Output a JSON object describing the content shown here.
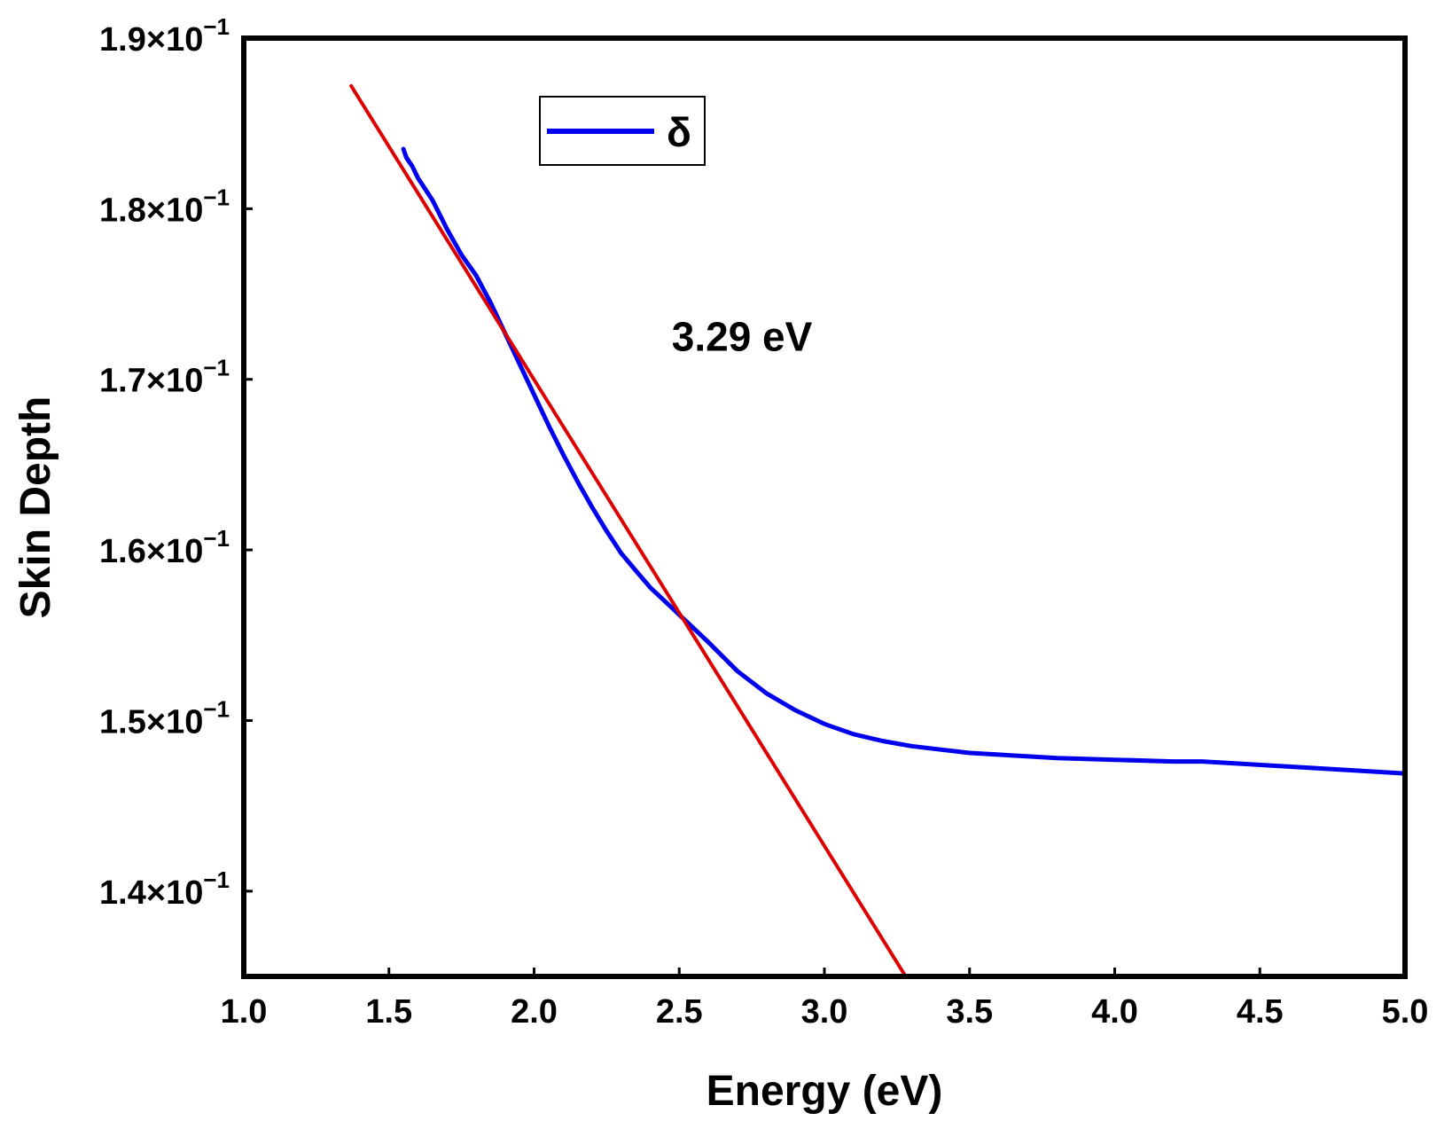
{
  "chart_data": {
    "type": "line",
    "xlabel": "Energy (eV)",
    "ylabel": "Skin Depth",
    "xlim": [
      1.0,
      5.0
    ],
    "ylim": [
      0.135,
      0.19
    ],
    "x_ticks": [
      1.0,
      1.5,
      2.0,
      2.5,
      3.0,
      3.5,
      4.0,
      4.5,
      5.0
    ],
    "x_tick_labels": [
      "1.0",
      "1.5",
      "2.0",
      "2.5",
      "3.0",
      "3.5",
      "4.0",
      "4.5",
      "5.0"
    ],
    "y_ticks": [
      0.14,
      0.15,
      0.16,
      0.17,
      0.18,
      0.19
    ],
    "y_tick_labels": [
      {
        "mantissa": "1.4×10",
        "exponent": "−1"
      },
      {
        "mantissa": "1.5×10",
        "exponent": "−1"
      },
      {
        "mantissa": "1.6×10",
        "exponent": "−1"
      },
      {
        "mantissa": "1.7×10",
        "exponent": "−1"
      },
      {
        "mantissa": "1.8×10",
        "exponent": "−1"
      },
      {
        "mantissa": "1.9×10",
        "exponent": "−1"
      }
    ],
    "grid": false,
    "legend": {
      "placement": "top-left",
      "entries": [
        "δ"
      ]
    },
    "annotation": {
      "text": "3.29 eV",
      "x": 3.1,
      "y": 0.1725
    },
    "series": [
      {
        "name": "δ",
        "color": "#0000ee",
        "x": [
          1.55,
          1.56,
          1.58,
          1.6,
          1.65,
          1.7,
          1.75,
          1.8,
          1.85,
          1.9,
          1.95,
          2.0,
          2.05,
          2.1,
          2.15,
          2.2,
          2.25,
          2.3,
          2.35,
          2.4,
          2.5,
          2.6,
          2.7,
          2.8,
          2.9,
          3.0,
          3.1,
          3.2,
          3.3,
          3.4,
          3.5,
          3.6,
          3.8,
          4.0,
          4.2,
          4.3,
          4.4,
          4.6,
          4.8,
          5.0
        ],
        "y": [
          0.1835,
          0.183,
          0.1825,
          0.1818,
          0.1805,
          0.1788,
          0.1773,
          0.1761,
          0.1745,
          0.1727,
          0.1709,
          0.1691,
          0.1673,
          0.1656,
          0.164,
          0.1625,
          0.1611,
          0.1598,
          0.1588,
          0.1578,
          0.1562,
          0.1546,
          0.1529,
          0.1516,
          0.1506,
          0.1498,
          0.1492,
          0.1488,
          0.1485,
          0.1483,
          0.1481,
          0.148,
          0.1478,
          0.1477,
          0.1476,
          0.1476,
          0.1475,
          0.1473,
          0.1471,
          0.1469
        ]
      },
      {
        "color": "#dd0000",
        "x": [
          1.37,
          3.28
        ],
        "y": [
          0.1872,
          0.135
        ]
      }
    ]
  }
}
